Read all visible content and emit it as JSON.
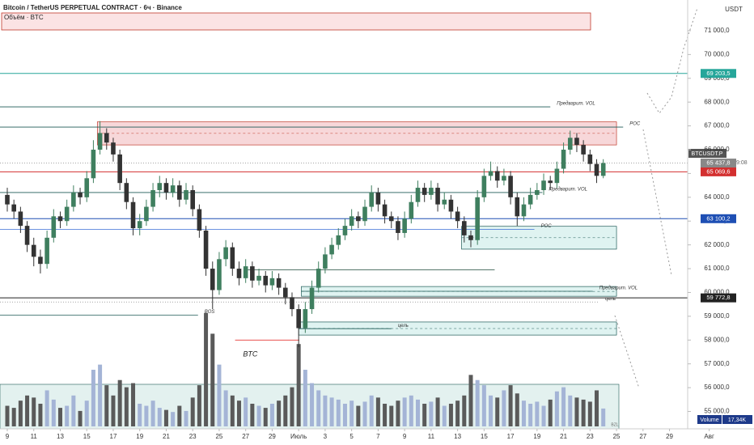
{
  "chart_data": {
    "type": "candlestick",
    "title": "Bitcoin / TetherUS PERPETUAL CONTRACT · 6ч · Binance",
    "volume_title": "Объём · BTC",
    "currency": "USDT",
    "symbol": "BTCUSDT.P",
    "countdown": "03:49:08",
    "volume_name": "Volume",
    "volume_last_label": "17,34K",
    "corner_note": "BZL",
    "up_color": "#3f7f5f",
    "down_color": "#333333",
    "volume_up_color": "#a4b4d6",
    "volume_down_color": "#5a5a5a",
    "xlim": [
      8.45,
      65.38
    ],
    "ylim": [
      54270,
      72290
    ],
    "xticks": [
      9,
      11,
      13,
      15,
      17,
      19,
      21,
      23,
      25,
      27,
      29,
      {
        "value": 31,
        "label": "Июль"
      },
      {
        "value": 33,
        "label": "3"
      },
      {
        "value": 35,
        "label": "5"
      },
      {
        "value": 37,
        "label": "7"
      },
      {
        "value": 39,
        "label": "9"
      },
      {
        "value": 41,
        "label": "11"
      },
      {
        "value": 43,
        "label": "13"
      },
      {
        "value": 45,
        "label": "15"
      },
      {
        "value": 47,
        "label": "17"
      },
      {
        "value": 49,
        "label": "19"
      },
      {
        "value": 51,
        "label": "21"
      },
      {
        "value": 53,
        "label": "23"
      },
      {
        "value": 55,
        "label": "25"
      },
      {
        "value": 57,
        "label": "27"
      },
      {
        "value": 59,
        "label": "29"
      },
      {
        "value": 62,
        "label": "Авг"
      }
    ],
    "yticks": [
      {
        "value": 71000,
        "label": "71 000,0"
      },
      {
        "value": 70000,
        "label": "70 000,0"
      },
      {
        "value": 69000,
        "label": "69 000,0"
      },
      {
        "value": 68000,
        "label": "68 000,0"
      },
      {
        "value": 67000,
        "label": "67 000,0"
      },
      {
        "value": 66000,
        "label": "66 000,0"
      },
      {
        "value": 65000,
        "label": "65 000,0"
      },
      {
        "value": 64000,
        "label": "64 000,0"
      },
      {
        "value": 63000,
        "label": "63 000,0"
      },
      {
        "value": 62000,
        "label": "62 000,0"
      },
      {
        "value": 61000,
        "label": "61 000,0"
      },
      {
        "value": 60000,
        "label": "60 000,0"
      },
      {
        "value": 59000,
        "label": "59 000,0"
      },
      {
        "value": 58000,
        "label": "58 000,0"
      },
      {
        "value": 57000,
        "label": "57 000,0"
      },
      {
        "value": 56000,
        "label": "56 000,0"
      },
      {
        "value": 55000,
        "label": "55 000,0"
      }
    ],
    "x": [
      9,
      9.5,
      10,
      10.5,
      11,
      11.5,
      12,
      12.5,
      13,
      13.5,
      14,
      14.5,
      15,
      15.5,
      16,
      16.5,
      17,
      17.5,
      18,
      18.5,
      19,
      19.5,
      20,
      20.5,
      21,
      21.5,
      22,
      22.5,
      23,
      23.5,
      24,
      24.5,
      25,
      25.5,
      26,
      26.5,
      27,
      27.5,
      28,
      28.5,
      29,
      29.5,
      30,
      30.5,
      31,
      31.5,
      32,
      32.5,
      33,
      33.5,
      34,
      34.5,
      35,
      35.5,
      36,
      36.5,
      37,
      37.5,
      38,
      38.5,
      39,
      39.5,
      40,
      40.5,
      41,
      41.5,
      42,
      42.5,
      43,
      43.5,
      44,
      44.5,
      45,
      45.5,
      46,
      46.5,
      47,
      47.5,
      48,
      48.5,
      49,
      49.5,
      50,
      50.5,
      51,
      51.5,
      52,
      52.5,
      53,
      53.5,
      54
    ],
    "candles": [
      [
        64100,
        64400,
        63400,
        63700
      ],
      [
        63700,
        63900,
        63100,
        63400
      ],
      [
        63400,
        63600,
        62500,
        62800
      ],
      [
        62800,
        63000,
        61700,
        62000
      ],
      [
        62000,
        62300,
        61100,
        61500
      ],
      [
        61500,
        61800,
        60800,
        61200
      ],
      [
        61200,
        62600,
        61000,
        62300
      ],
      [
        62300,
        63500,
        62100,
        63200
      ],
      [
        63200,
        63400,
        62700,
        63000
      ],
      [
        63000,
        63900,
        62800,
        63600
      ],
      [
        63600,
        64500,
        63400,
        64200
      ],
      [
        64200,
        64400,
        63700,
        64000
      ],
      [
        64000,
        65100,
        63800,
        64800
      ],
      [
        64800,
        66400,
        64600,
        66000
      ],
      [
        66000,
        67200,
        65800,
        66700
      ],
      [
        66700,
        66900,
        66000,
        66300
      ],
      [
        66300,
        66500,
        65500,
        65800
      ],
      [
        65800,
        66000,
        64300,
        64600
      ],
      [
        64600,
        64800,
        63500,
        63800
      ],
      [
        63800,
        64000,
        62400,
        62700
      ],
      [
        62700,
        63300,
        62400,
        63000
      ],
      [
        63000,
        63900,
        62800,
        63600
      ],
      [
        63600,
        64600,
        63400,
        64300
      ],
      [
        64300,
        64900,
        64000,
        64600
      ],
      [
        64600,
        64800,
        63900,
        64200
      ],
      [
        64200,
        64800,
        64000,
        64500
      ],
      [
        64500,
        64700,
        63600,
        63900
      ],
      [
        63900,
        64600,
        63700,
        64300
      ],
      [
        64300,
        64500,
        63200,
        63500
      ],
      [
        63500,
        63700,
        62300,
        62600
      ],
      [
        62600,
        62800,
        60700,
        61000
      ],
      [
        61000,
        61300,
        59300,
        60100
      ],
      [
        60100,
        61700,
        59900,
        61400
      ],
      [
        61400,
        62200,
        61100,
        61900
      ],
      [
        61900,
        62100,
        60700,
        61000
      ],
      [
        61000,
        61300,
        60300,
        60600
      ],
      [
        60600,
        61400,
        60400,
        61100
      ],
      [
        61100,
        61300,
        60200,
        60500
      ],
      [
        60500,
        61000,
        60300,
        60700
      ],
      [
        60700,
        60900,
        60000,
        60300
      ],
      [
        60300,
        60900,
        60100,
        60600
      ],
      [
        60600,
        60800,
        59900,
        60200
      ],
      [
        60200,
        60400,
        59500,
        59800
      ],
      [
        59800,
        60000,
        59000,
        59300
      ],
      [
        59300,
        59500,
        57700,
        58500
      ],
      [
        58500,
        59600,
        58300,
        59300
      ],
      [
        59300,
        60500,
        59100,
        60200
      ],
      [
        60200,
        61300,
        60000,
        61000
      ],
      [
        61000,
        61900,
        60800,
        61600
      ],
      [
        61600,
        62300,
        61400,
        62000
      ],
      [
        62000,
        62700,
        61800,
        62400
      ],
      [
        62400,
        63100,
        62200,
        62800
      ],
      [
        62800,
        63500,
        62600,
        63200
      ],
      [
        63200,
        63400,
        62700,
        63000
      ],
      [
        63000,
        63900,
        62800,
        63600
      ],
      [
        63600,
        64500,
        63400,
        64200
      ],
      [
        64200,
        64400,
        63400,
        63700
      ],
      [
        63700,
        63900,
        62900,
        63200
      ],
      [
        63200,
        63400,
        62700,
        63000
      ],
      [
        63000,
        63200,
        62200,
        62500
      ],
      [
        62500,
        63400,
        62300,
        63100
      ],
      [
        63100,
        64100,
        62900,
        63800
      ],
      [
        63800,
        64700,
        63600,
        64400
      ],
      [
        64400,
        64600,
        63800,
        64100
      ],
      [
        64100,
        64700,
        63900,
        64400
      ],
      [
        64400,
        64600,
        63400,
        63700
      ],
      [
        63700,
        64200,
        63500,
        63900
      ],
      [
        63900,
        64100,
        63100,
        63400
      ],
      [
        63400,
        63600,
        62700,
        63000
      ],
      [
        63000,
        63200,
        62100,
        62400
      ],
      [
        62400,
        62600,
        61900,
        62200
      ],
      [
        62200,
        64300,
        62000,
        64000
      ],
      [
        64000,
        65200,
        63800,
        64900
      ],
      [
        64900,
        65500,
        64700,
        65100
      ],
      [
        65100,
        65300,
        64400,
        64700
      ],
      [
        64700,
        65200,
        64500,
        64900
      ],
      [
        64900,
        65100,
        63700,
        64000
      ],
      [
        64000,
        64200,
        62800,
        63200
      ],
      [
        63200,
        64000,
        63000,
        63700
      ],
      [
        63700,
        64400,
        63500,
        64100
      ],
      [
        64100,
        64600,
        63900,
        64300
      ],
      [
        64300,
        65000,
        64100,
        64700
      ],
      [
        64700,
        64900,
        64300,
        64600
      ],
      [
        64600,
        65500,
        64400,
        65200
      ],
      [
        65200,
        66300,
        65000,
        66000
      ],
      [
        66000,
        66800,
        65800,
        66500
      ],
      [
        66500,
        66700,
        65900,
        66200
      ],
      [
        66200,
        66400,
        65500,
        65800
      ],
      [
        65800,
        66000,
        65100,
        65400
      ],
      [
        65400,
        65600,
        64600,
        64900
      ],
      [
        64900,
        65600,
        64800,
        65437.8
      ]
    ],
    "volume": [
      20,
      18,
      25,
      30,
      28,
      22,
      35,
      26,
      18,
      20,
      30,
      15,
      25,
      55,
      60,
      40,
      30,
      45,
      38,
      42,
      22,
      20,
      25,
      18,
      16,
      14,
      20,
      15,
      28,
      40,
      110,
      90,
      60,
      35,
      30,
      25,
      28,
      22,
      20,
      18,
      22,
      25,
      30,
      38,
      80,
      55,
      42,
      35,
      30,
      28,
      26,
      22,
      25,
      20,
      24,
      30,
      28,
      22,
      20,
      25,
      28,
      30,
      26,
      22,
      24,
      28,
      20,
      22,
      25,
      30,
      50,
      45,
      40,
      30,
      28,
      35,
      40,
      32,
      25,
      22,
      24,
      20,
      26,
      34,
      38,
      30,
      28,
      26,
      24,
      35,
      17.34
    ],
    "zones": [
      {
        "top": 67170,
        "bottom": 66200,
        "start": 15.8,
        "end": 55.0,
        "color": "#f7d7d9",
        "border": "#c0392b"
      },
      {
        "top": 62780,
        "bottom": 61820,
        "start": 43.3,
        "end": 55.0,
        "color": "#dff3f1",
        "border": "#1e5a56"
      },
      {
        "top": 60250,
        "bottom": 59840,
        "start": 31.2,
        "end": 55.0,
        "color": "#dff3f1",
        "border": "#1e5a56"
      },
      {
        "top": 58760,
        "bottom": 58210,
        "start": 31.0,
        "end": 55.0,
        "color": "#dff3f1",
        "border": "#1e5a56"
      }
    ],
    "levels": [
      {
        "value": 69203.5,
        "color": "#26a69a",
        "price_label": "69 203,5"
      },
      {
        "value": 67800,
        "color": "#1e5a56",
        "end": 50.0,
        "label": "Предварит. VOL"
      },
      {
        "value": 66950,
        "color": "#1e5a56",
        "end": 55.5,
        "label": "POC"
      },
      {
        "value": 65069.6,
        "color": "#d32f2f",
        "price_label": "65 069,6"
      },
      {
        "value": 65437.8,
        "color": "#888888",
        "price_label": "65 437,8"
      },
      {
        "value": 64200,
        "color": "#1e5a56",
        "end": 49.4,
        "label": "Предварит. VOL"
      },
      {
        "value": 63100.2,
        "color": "#1e4fb4",
        "price_label": "63 100,2"
      },
      {
        "value": 62650,
        "color": "#3d6fd6",
        "end": 48.8,
        "label": "POC"
      },
      {
        "value": 60950,
        "color": "#1e4a3a",
        "start": 27.1,
        "end": 45.8
      },
      {
        "value": 60050,
        "color": "#1e5a56",
        "start": 31.2,
        "end": 53.2,
        "label": "Предварит. VOL"
      },
      {
        "value": 59772.8,
        "color": "#222222",
        "price_label": "59 772,8"
      },
      {
        "value": 59600,
        "color": "#888888",
        "end": 53.65,
        "label": "цель"
      },
      {
        "value": 59050,
        "color": "#1e5a56",
        "end": 23.4,
        "label": "BOS"
      },
      {
        "value": 58480,
        "color": "#1e5a56",
        "start": 31.0,
        "end": 38.0,
        "label": "цель"
      },
      {
        "value": 58000,
        "color": "#e53935",
        "start": 26.2,
        "end": 31.05
      }
    ],
    "annotations": [
      {
        "text": "BTC",
        "x": 26.8,
        "price": 57400
      }
    ]
  }
}
